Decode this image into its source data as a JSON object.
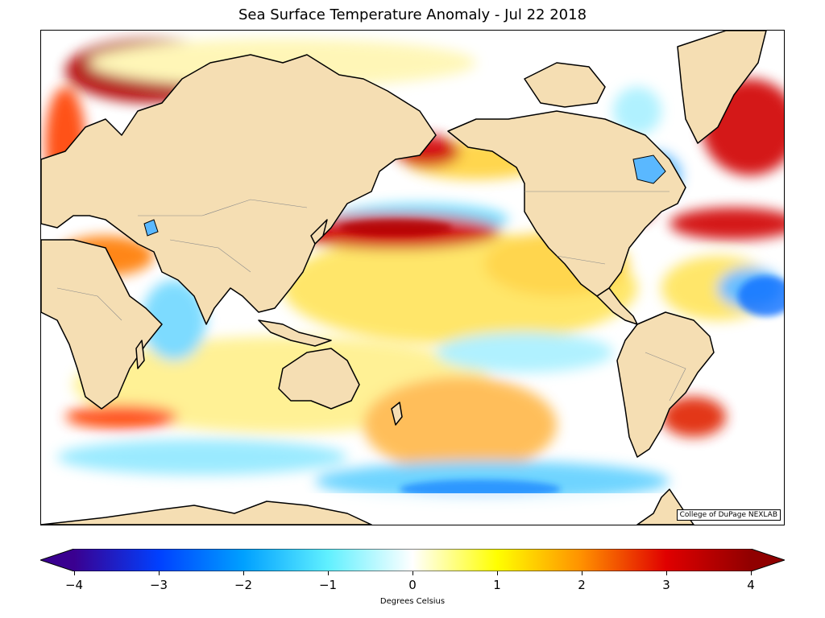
{
  "title": "Sea Surface Temperature Anomaly - Jul 22 2018",
  "credit": "College of DuPage NEXLAB",
  "colorbar": {
    "label": "Degrees Celsius",
    "min": -4,
    "max": 4,
    "ticks": [
      "−4",
      "−3",
      "−2",
      "−1",
      "0",
      "1",
      "2",
      "3",
      "4"
    ],
    "extend": "both",
    "stops": [
      "#3a0090",
      "#0040ff",
      "#00a0ff",
      "#60f0ff",
      "#ffffff",
      "#ffff00",
      "#ff9000",
      "#e00000",
      "#900000"
    ]
  },
  "map": {
    "ocean_color": "#ffffff",
    "land_color": "#f5deb3",
    "coastline_color": "#000000",
    "warm_anomaly_color": "#d00000",
    "cool_anomaly_color": "#2a8cff"
  }
}
